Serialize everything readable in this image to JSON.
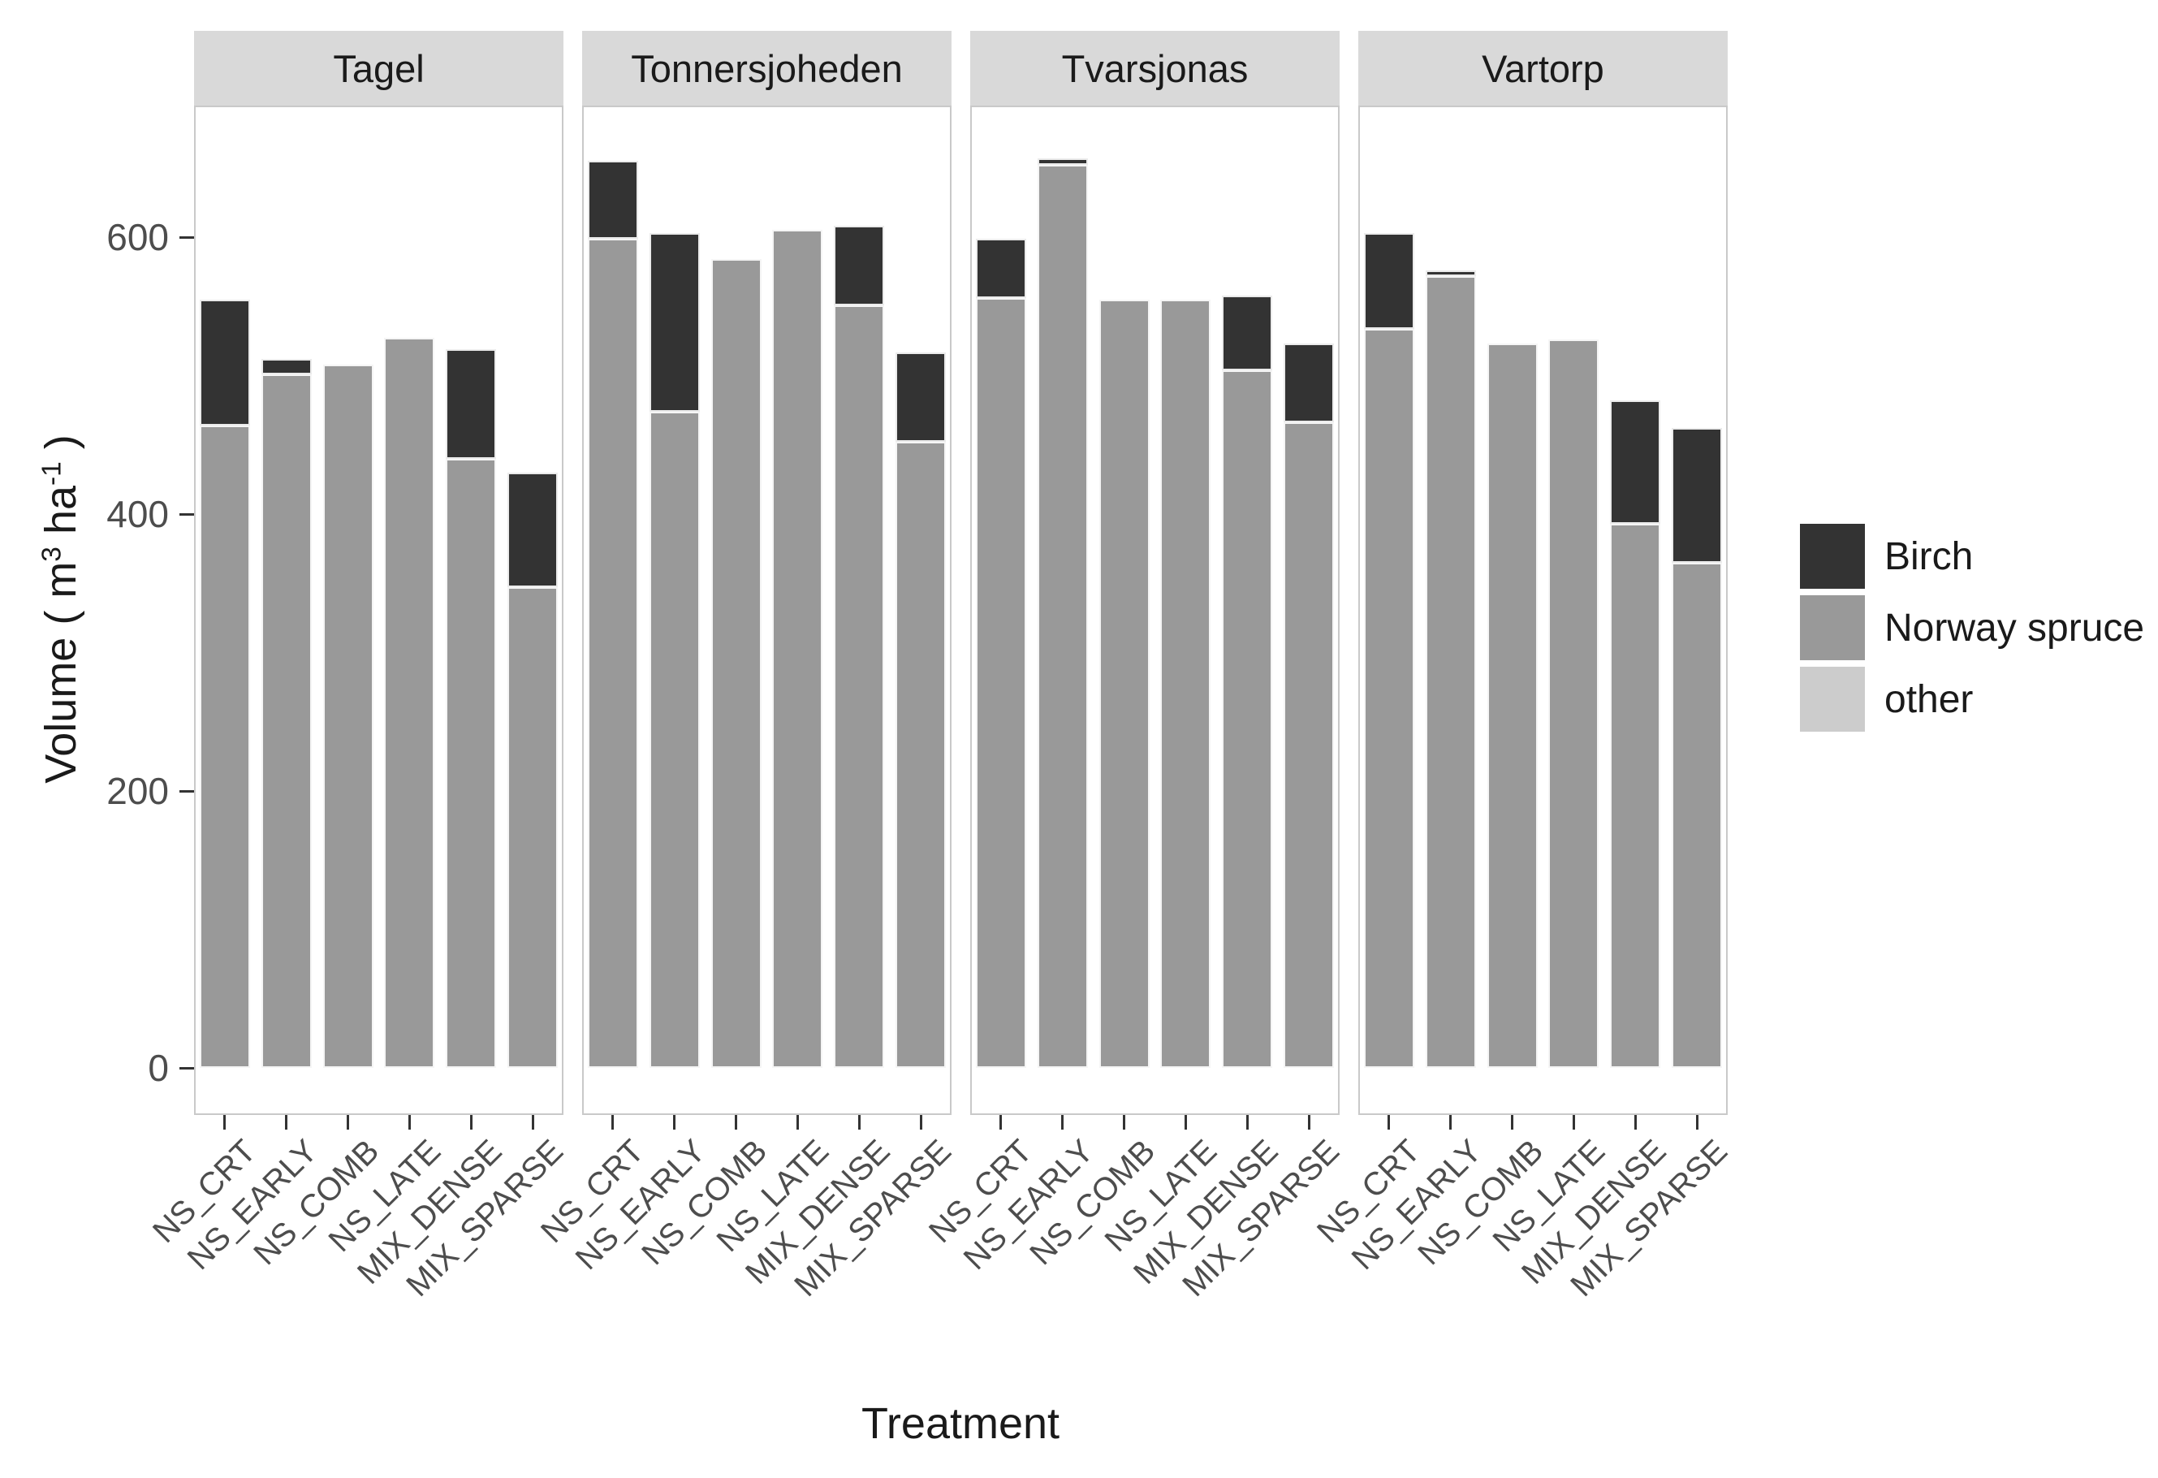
{
  "chart_data": {
    "type": "bar",
    "stacked": true,
    "facet_names": [
      "Tagel",
      "Tonnersjoheden",
      "Tvarsjonas",
      "Vartorp"
    ],
    "categories": [
      "NS_CRT",
      "NS_EARLY",
      "NS_COMB",
      "NS_LATE",
      "MIX_DENSE",
      "MIX_SPARSE"
    ],
    "xlabel": "Treatment",
    "ylabel_plain": "Volume ( m3 ha-1 )",
    "ylabel_parts": {
      "prefix": "Volume ( m",
      "sup1": "3",
      "mid": " ha",
      "sup2": "-1",
      "suffix": " )"
    },
    "yticks": [
      0,
      200,
      400,
      600
    ],
    "ylim": [
      0,
      695
    ],
    "grid": false,
    "legend_position": "right",
    "legend": [
      {
        "label": "Birch",
        "color": "#333333"
      },
      {
        "label": "Norway spruce",
        "color": "#999999"
      },
      {
        "label": "other",
        "color": "#cccccc"
      }
    ],
    "stack_order_bottom_to_top": [
      "other",
      "Norway spruce",
      "Birch"
    ],
    "facets": [
      {
        "name": "Tagel",
        "series": [
          {
            "name": "Birch",
            "values": [
              91,
              11,
              0,
              0,
              79,
              83
            ]
          },
          {
            "name": "Norway spruce",
            "values": [
              464,
              501,
              508,
              527,
              440,
              347
            ]
          },
          {
            "name": "other",
            "values": [
              0,
              0,
              0,
              0,
              0,
              0
            ]
          }
        ]
      },
      {
        "name": "Tonnersjoheden",
        "series": [
          {
            "name": "Birch",
            "values": [
              56,
              129,
              0,
              0,
              57,
              65
            ]
          },
          {
            "name": "Norway spruce",
            "values": [
              599,
              474,
              584,
              605,
              551,
              452
            ]
          },
          {
            "name": "other",
            "values": [
              0,
              0,
              0,
              0,
              0,
              0
            ]
          }
        ]
      },
      {
        "name": "Tvarsjonas",
        "series": [
          {
            "name": "Birch",
            "values": [
              43,
              5,
              0,
              0,
              54,
              57
            ]
          },
          {
            "name": "Norway spruce",
            "values": [
              556,
              652,
              555,
              555,
              504,
              466
            ]
          },
          {
            "name": "other",
            "values": [
              0,
              0,
              0,
              0,
              0,
              0
            ]
          }
        ]
      },
      {
        "name": "Vartorp",
        "series": [
          {
            "name": "Birch",
            "values": [
              69,
              4,
              0,
              0,
              89,
              97
            ]
          },
          {
            "name": "Norway spruce",
            "values": [
              534,
              572,
              523,
              526,
              393,
              365
            ]
          },
          {
            "name": "other",
            "values": [
              0,
              0,
              0,
              0,
              0,
              0
            ]
          }
        ]
      }
    ]
  },
  "colors": {
    "birch": "#333333",
    "norway_spruce": "#999999",
    "other": "#cccccc",
    "strip_background": "#d9d9d9",
    "panel_border": "#c9c9c9",
    "tick_mark": "#333333",
    "axis_text": "#4d4d4d",
    "title_text": "#1a1a1a"
  }
}
